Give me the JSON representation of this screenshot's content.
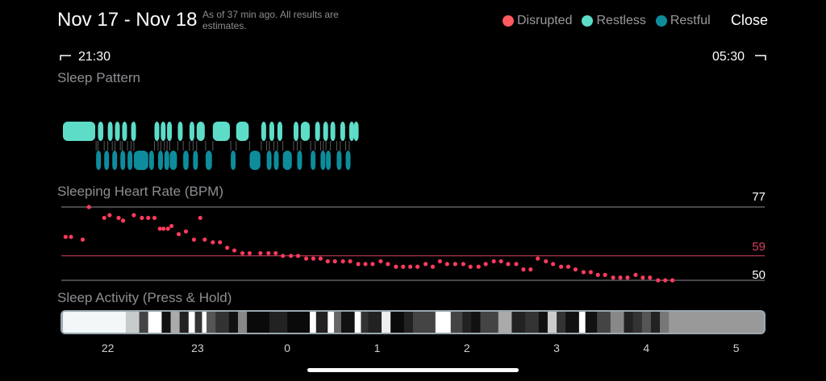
{
  "header": {
    "title": "Nov 17 - Nov 18",
    "subtitle": "As of 37 min ago. All results are estimates.",
    "close_label": "Close"
  },
  "legend": [
    {
      "label": "Disrupted",
      "color": "#ff5a5f"
    },
    {
      "label": "Restless",
      "color": "#5ddcc8"
    },
    {
      "label": "Restful",
      "color": "#0e8c9c"
    }
  ],
  "timeline": {
    "start": "21:30",
    "end": "05:30"
  },
  "sleep_pattern": {
    "title": "Sleep Pattern",
    "segments": [
      {
        "state": "restless",
        "start": 21.5,
        "end": 21.86
      },
      {
        "state": "restful",
        "start": 21.87,
        "end": 21.89
      },
      {
        "state": "restless",
        "start": 21.89,
        "end": 21.95
      },
      {
        "state": "restful",
        "start": 21.96,
        "end": 21.99
      },
      {
        "state": "restless",
        "start": 22.0,
        "end": 22.05
      },
      {
        "state": "restful",
        "start": 22.05,
        "end": 22.08
      },
      {
        "state": "restless",
        "start": 22.08,
        "end": 22.13
      },
      {
        "state": "restful",
        "start": 22.14,
        "end": 22.16
      },
      {
        "state": "restless",
        "start": 22.16,
        "end": 22.21
      },
      {
        "state": "restful",
        "start": 22.22,
        "end": 22.25
      },
      {
        "state": "restless",
        "start": 22.26,
        "end": 22.28
      },
      {
        "state": "restful",
        "start": 22.29,
        "end": 22.45
      },
      {
        "state": "restful",
        "start": 22.46,
        "end": 22.51
      },
      {
        "state": "restless",
        "start": 22.52,
        "end": 22.55
      },
      {
        "state": "restful",
        "start": 22.56,
        "end": 22.58
      },
      {
        "state": "restless",
        "start": 22.59,
        "end": 22.62
      },
      {
        "state": "restful",
        "start": 22.63,
        "end": 22.65
      },
      {
        "state": "restless",
        "start": 22.66,
        "end": 22.68
      },
      {
        "state": "restful",
        "start": 22.69,
        "end": 22.77
      },
      {
        "state": "restless",
        "start": 22.78,
        "end": 22.83
      },
      {
        "state": "restful",
        "start": 22.84,
        "end": 22.9
      },
      {
        "state": "restless",
        "start": 22.91,
        "end": 22.94
      },
      {
        "state": "restful",
        "start": 22.95,
        "end": 22.98
      },
      {
        "state": "restless",
        "start": 22.99,
        "end": 23.08
      },
      {
        "state": "restful",
        "start": 23.09,
        "end": 23.16
      },
      {
        "state": "restless",
        "start": 23.17,
        "end": 23.36
      },
      {
        "state": "restful",
        "start": 23.37,
        "end": 23.42
      },
      {
        "state": "restless",
        "start": 23.43,
        "end": 23.57
      },
      {
        "state": "restful",
        "start": 23.58,
        "end": 23.7
      },
      {
        "state": "restless",
        "start": 23.71,
        "end": 23.76
      },
      {
        "state": "restful",
        "start": 23.77,
        "end": 23.79
      },
      {
        "state": "restless",
        "start": 23.8,
        "end": 23.84
      },
      {
        "state": "restful",
        "start": 23.85,
        "end": 23.88
      },
      {
        "state": "restless",
        "start": 23.89,
        "end": 23.94
      },
      {
        "state": "restful",
        "start": 23.95,
        "end": 24.05
      },
      {
        "state": "restless",
        "start": 24.07,
        "end": 24.1
      },
      {
        "state": "restful",
        "start": 24.11,
        "end": 24.14
      },
      {
        "state": "restless",
        "start": 24.15,
        "end": 24.25
      },
      {
        "state": "restful",
        "start": 24.26,
        "end": 24.3
      },
      {
        "state": "restless",
        "start": 24.31,
        "end": 24.35
      },
      {
        "state": "restful",
        "start": 24.37,
        "end": 24.39
      },
      {
        "state": "restless",
        "start": 24.4,
        "end": 24.42
      },
      {
        "state": "restful",
        "start": 24.43,
        "end": 24.47
      },
      {
        "state": "restless",
        "start": 24.48,
        "end": 24.53
      },
      {
        "state": "restful",
        "start": 24.55,
        "end": 24.58
      },
      {
        "state": "restless",
        "start": 24.59,
        "end": 24.64
      },
      {
        "state": "restful",
        "start": 24.65,
        "end": 24.68
      },
      {
        "state": "restless",
        "start": 24.69,
        "end": 24.72
      },
      {
        "state": "restless",
        "start": 24.74,
        "end": 24.78
      }
    ]
  },
  "heart_rate": {
    "title": "Sleeping Heart Rate (BPM)",
    "max": 77,
    "avg": 59,
    "min": 50,
    "points": [
      [
        21.53,
        66
      ],
      [
        21.59,
        66
      ],
      [
        21.72,
        65
      ],
      [
        21.79,
        77
      ],
      [
        21.96,
        73
      ],
      [
        22.02,
        74
      ],
      [
        22.12,
        73
      ],
      [
        22.17,
        72
      ],
      [
        22.29,
        74
      ],
      [
        22.38,
        73
      ],
      [
        22.45,
        73
      ],
      [
        22.52,
        73
      ],
      [
        22.58,
        69
      ],
      [
        22.62,
        69
      ],
      [
        22.67,
        69
      ],
      [
        22.71,
        70
      ],
      [
        22.79,
        67
      ],
      [
        22.87,
        68
      ],
      [
        22.96,
        65
      ],
      [
        23.03,
        73
      ],
      [
        23.08,
        65
      ],
      [
        23.17,
        64
      ],
      [
        23.25,
        64
      ],
      [
        23.33,
        62
      ],
      [
        23.41,
        61
      ],
      [
        23.5,
        60
      ],
      [
        23.58,
        60
      ],
      [
        23.7,
        60
      ],
      [
        23.79,
        60
      ],
      [
        23.87,
        60
      ],
      [
        23.95,
        59
      ],
      [
        24.04,
        59
      ],
      [
        24.12,
        59
      ],
      [
        24.21,
        58
      ],
      [
        24.29,
        58
      ],
      [
        24.37,
        58
      ],
      [
        24.45,
        57
      ],
      [
        24.53,
        57
      ],
      [
        24.62,
        57
      ],
      [
        24.7,
        57
      ],
      [
        24.79,
        56
      ],
      [
        24.87,
        56
      ],
      [
        24.95,
        56
      ],
      [
        25.04,
        57
      ],
      [
        25.12,
        56
      ],
      [
        25.21,
        55
      ],
      [
        25.29,
        55
      ],
      [
        25.37,
        55
      ],
      [
        25.45,
        55
      ],
      [
        25.54,
        56
      ],
      [
        25.62,
        55
      ],
      [
        25.7,
        57
      ],
      [
        25.78,
        56
      ],
      [
        25.87,
        56
      ],
      [
        25.96,
        56
      ],
      [
        26.04,
        55
      ],
      [
        26.13,
        55
      ],
      [
        26.21,
        56
      ],
      [
        26.3,
        57
      ],
      [
        26.38,
        57
      ],
      [
        26.46,
        56
      ],
      [
        26.55,
        56
      ],
      [
        26.63,
        54
      ],
      [
        26.71,
        54
      ],
      [
        26.79,
        58
      ],
      [
        26.88,
        57
      ],
      [
        26.96,
        56
      ],
      [
        27.05,
        55
      ],
      [
        27.13,
        55
      ],
      [
        27.21,
        54
      ],
      [
        27.3,
        53
      ],
      [
        27.38,
        53
      ],
      [
        27.46,
        52
      ],
      [
        27.54,
        52
      ],
      [
        27.63,
        51
      ],
      [
        27.71,
        51
      ],
      [
        27.79,
        51
      ],
      [
        27.88,
        52
      ],
      [
        27.96,
        51
      ],
      [
        28.04,
        51
      ],
      [
        28.13,
        50
      ],
      [
        28.21,
        50
      ],
      [
        28.29,
        50
      ]
    ]
  },
  "sleep_activity": {
    "title": "Sleep Activity (Press & Hold)",
    "blocks": [
      {
        "start": 21.5,
        "end": 22.2,
        "shade": "#f2f7f7"
      },
      {
        "start": 22.2,
        "end": 22.35,
        "shade": "#c7cbcc"
      },
      {
        "start": 22.35,
        "end": 22.45,
        "shade": "#444"
      },
      {
        "start": 22.45,
        "end": 22.6,
        "shade": "#fff"
      },
      {
        "start": 22.6,
        "end": 22.7,
        "shade": "#111"
      },
      {
        "start": 22.7,
        "end": 22.8,
        "shade": "#aaa"
      },
      {
        "start": 22.8,
        "end": 22.9,
        "shade": "#222"
      },
      {
        "start": 22.9,
        "end": 22.97,
        "shade": "#fff"
      },
      {
        "start": 22.97,
        "end": 23.05,
        "shade": "#333"
      },
      {
        "start": 23.05,
        "end": 23.1,
        "shade": "#fff"
      },
      {
        "start": 23.1,
        "end": 23.2,
        "shade": "#555"
      },
      {
        "start": 23.2,
        "end": 23.35,
        "shade": "#333"
      },
      {
        "start": 23.35,
        "end": 23.45,
        "shade": "#111"
      },
      {
        "start": 23.45,
        "end": 23.55,
        "shade": "#888"
      },
      {
        "start": 23.55,
        "end": 23.8,
        "shade": "#0a0a0a"
      },
      {
        "start": 23.8,
        "end": 24.0,
        "shade": "#222"
      },
      {
        "start": 24.0,
        "end": 24.25,
        "shade": "#0a0a0a"
      },
      {
        "start": 24.25,
        "end": 24.32,
        "shade": "#fff"
      },
      {
        "start": 24.32,
        "end": 24.45,
        "shade": "#222"
      },
      {
        "start": 24.45,
        "end": 24.52,
        "shade": "#fff"
      },
      {
        "start": 24.52,
        "end": 24.6,
        "shade": "#666"
      },
      {
        "start": 24.6,
        "end": 24.75,
        "shade": "#111"
      },
      {
        "start": 24.75,
        "end": 24.82,
        "shade": "#fff"
      },
      {
        "start": 24.82,
        "end": 24.9,
        "shade": "#333"
      },
      {
        "start": 24.9,
        "end": 25.05,
        "shade": "#222"
      },
      {
        "start": 25.05,
        "end": 25.15,
        "shade": "#eee"
      },
      {
        "start": 25.15,
        "end": 25.3,
        "shade": "#0a0a0a"
      },
      {
        "start": 25.3,
        "end": 25.4,
        "shade": "#222"
      },
      {
        "start": 25.4,
        "end": 25.65,
        "shade": "#444"
      },
      {
        "start": 25.65,
        "end": 25.82,
        "shade": "#fff"
      },
      {
        "start": 25.82,
        "end": 25.95,
        "shade": "#444"
      },
      {
        "start": 25.95,
        "end": 26.05,
        "shade": "#222"
      },
      {
        "start": 26.05,
        "end": 26.15,
        "shade": "#111"
      },
      {
        "start": 26.15,
        "end": 26.35,
        "shade": "#444"
      },
      {
        "start": 26.35,
        "end": 26.5,
        "shade": "#aaa"
      },
      {
        "start": 26.5,
        "end": 26.65,
        "shade": "#222"
      },
      {
        "start": 26.65,
        "end": 26.8,
        "shade": "#333"
      },
      {
        "start": 26.8,
        "end": 26.9,
        "shade": "#111"
      },
      {
        "start": 26.9,
        "end": 27.0,
        "shade": "#ccc"
      },
      {
        "start": 27.0,
        "end": 27.1,
        "shade": "#333"
      },
      {
        "start": 27.1,
        "end": 27.25,
        "shade": "#111"
      },
      {
        "start": 27.25,
        "end": 27.32,
        "shade": "#fff"
      },
      {
        "start": 27.32,
        "end": 27.45,
        "shade": "#111"
      },
      {
        "start": 27.45,
        "end": 27.6,
        "shade": "#444"
      },
      {
        "start": 27.6,
        "end": 27.75,
        "shade": "#888"
      },
      {
        "start": 27.75,
        "end": 27.85,
        "shade": "#222"
      },
      {
        "start": 27.85,
        "end": 27.95,
        "shade": "#333"
      },
      {
        "start": 27.95,
        "end": 28.05,
        "shade": "#555"
      },
      {
        "start": 28.05,
        "end": 28.15,
        "shade": "#222"
      },
      {
        "start": 28.15,
        "end": 28.25,
        "shade": "#777"
      },
      {
        "start": 28.25,
        "end": 28.4,
        "shade": "#999"
      }
    ]
  },
  "x_axis": {
    "ticks": [
      {
        "label": "22",
        "value": 22
      },
      {
        "label": "23",
        "value": 23
      },
      {
        "label": "0",
        "value": 24
      },
      {
        "label": "1",
        "value": 25
      },
      {
        "label": "2",
        "value": 26
      },
      {
        "label": "3",
        "value": 27
      },
      {
        "label": "4",
        "value": 28
      },
      {
        "label": "5",
        "value": 29
      }
    ]
  },
  "colors": {
    "restless": "#5ddcc8",
    "restful": "#0e8c9c",
    "disrupted": "#ff5a5f",
    "heart_dot": "#ff3b5c",
    "avg_line": "#d6435f"
  }
}
